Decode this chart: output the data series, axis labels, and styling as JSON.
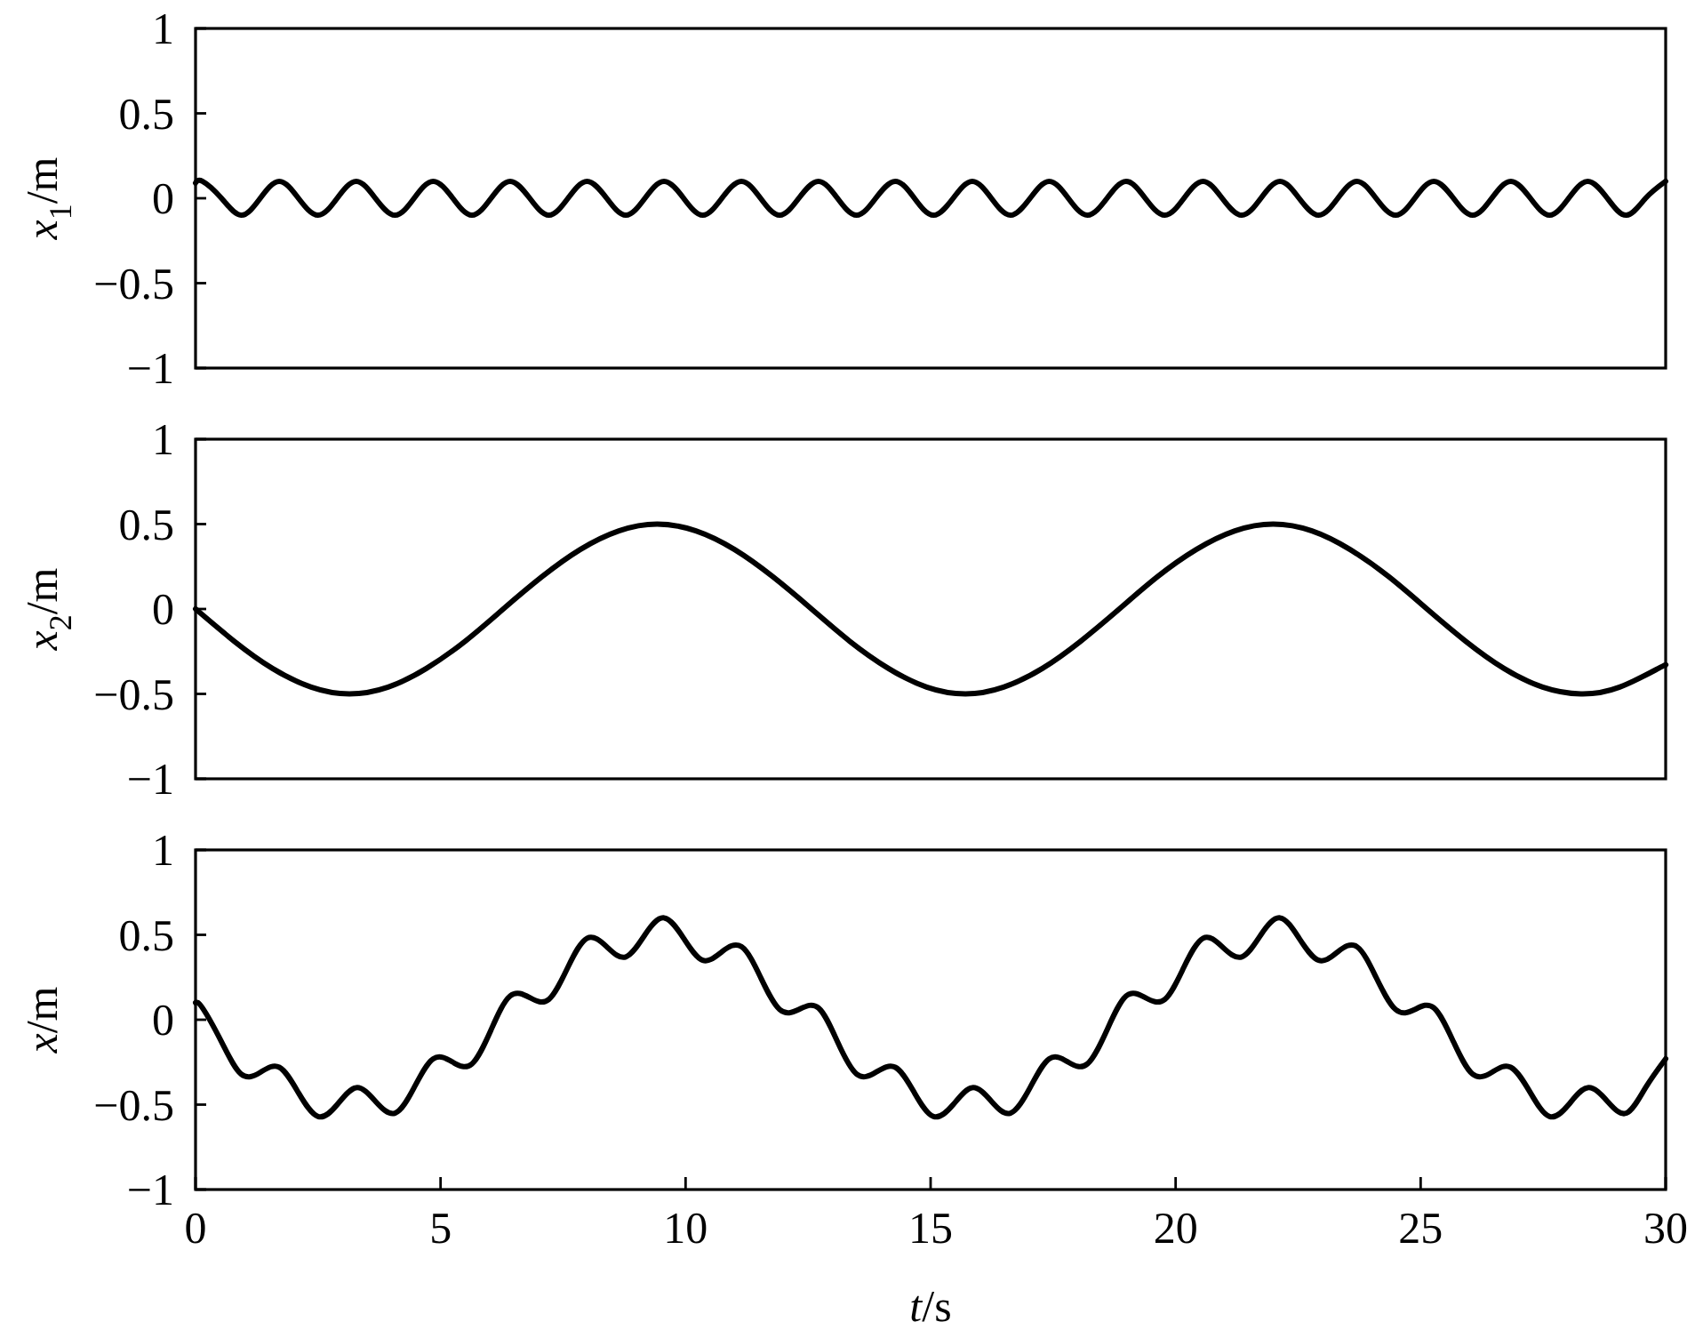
{
  "chart_data": [
    {
      "type": "line",
      "ylabel": "x$_{1}$/m",
      "xlim": [
        0,
        30
      ],
      "ylim": [
        -1,
        1
      ],
      "yticks": [
        -1,
        -0.5,
        0,
        0.5,
        1
      ],
      "tick_labels": "y",
      "color": "#000000",
      "x": [
        0,
        0.14,
        0.53,
        0.93,
        1.32,
        1.71,
        2.1,
        2.5,
        2.89,
        3.28,
        3.67,
        4.07,
        4.46,
        4.85,
        5.25,
        5.64,
        6.03,
        6.42,
        6.82,
        7.21,
        7.6,
        7.99,
        8.39,
        8.78,
        9.17,
        9.56,
        9.96,
        10.35,
        10.74,
        11.14,
        11.53,
        11.92,
        12.31,
        12.71,
        13.1,
        13.49,
        13.88,
        14.28,
        14.67,
        15.06,
        15.46,
        15.85,
        16.24,
        16.63,
        17.03,
        17.42,
        17.81,
        18.2,
        18.6,
        18.99,
        19.38,
        19.78,
        20.17,
        20.56,
        20.95,
        21.35,
        21.74,
        22.13,
        22.52,
        22.92,
        23.31,
        23.7,
        24.09,
        24.49,
        24.88,
        25.27,
        25.67,
        26.06,
        26.45,
        26.84,
        27.24,
        27.63,
        28.02,
        28.41,
        28.81,
        29.2,
        29.59,
        30
      ],
      "values": [
        0.09,
        0.1,
        0,
        -0.1,
        0,
        0.1,
        0,
        -0.1,
        0,
        0.1,
        0,
        -0.1,
        0,
        0.1,
        0,
        -0.1,
        0,
        0.1,
        0,
        -0.1,
        0,
        0.1,
        0,
        -0.1,
        0,
        0.1,
        0,
        -0.1,
        0,
        0.1,
        0,
        -0.1,
        0,
        0.1,
        0,
        -0.1,
        0,
        0.1,
        0,
        -0.1,
        0,
        0.1,
        0,
        -0.1,
        0,
        0.1,
        0,
        -0.1,
        0,
        0.1,
        0,
        -0.1,
        0,
        0.1,
        0,
        -0.1,
        0,
        0.1,
        0,
        -0.1,
        0,
        0.1,
        0,
        -0.1,
        0,
        0.1,
        0,
        -0.1,
        0,
        0.1,
        0,
        -0.1,
        0,
        0.1,
        0,
        -0.1,
        0,
        0.1
      ]
    },
    {
      "type": "line",
      "ylabel": "x$_{2}$/m",
      "xlim": [
        0,
        30
      ],
      "ylim": [
        -1,
        1
      ],
      "yticks": [
        -1,
        -0.5,
        0,
        0.5,
        1
      ],
      "tick_labels": "y",
      "color": "#000000",
      "x": [
        0,
        0.79,
        1.57,
        2.36,
        3.14,
        3.93,
        4.71,
        5.5,
        6.28,
        7.07,
        7.85,
        8.64,
        9.42,
        10.21,
        11,
        11.78,
        12.57,
        13.35,
        14.14,
        14.92,
        15.71,
        16.49,
        17.28,
        18.06,
        18.85,
        19.63,
        20.42,
        21.21,
        21.99,
        22.78,
        23.56,
        24.35,
        25.13,
        25.92,
        26.7,
        27.49,
        28.27,
        29.06,
        29.85,
        30
      ],
      "values": [
        0,
        -0.19,
        -0.35,
        -0.46,
        -0.5,
        -0.46,
        -0.35,
        -0.19,
        0,
        0.19,
        0.35,
        0.46,
        0.5,
        0.46,
        0.35,
        0.19,
        0,
        -0.19,
        -0.35,
        -0.46,
        -0.5,
        -0.46,
        -0.35,
        -0.19,
        0,
        0.19,
        0.35,
        0.46,
        0.5,
        0.46,
        0.35,
        0.19,
        0,
        -0.19,
        -0.35,
        -0.46,
        -0.5,
        -0.46,
        -0.35,
        -0.33
      ]
    },
    {
      "type": "line",
      "ylabel": "x/m",
      "xlabel": "t/s",
      "xlim": [
        0,
        30
      ],
      "ylim": [
        -1,
        1
      ],
      "xticks": [
        0,
        5,
        10,
        15,
        20,
        25,
        30
      ],
      "yticks": [
        -1,
        -0.5,
        0,
        0.5,
        1
      ],
      "color": "#000000",
      "x": [
        0,
        0.14,
        0.53,
        0.93,
        1.32,
        1.71,
        2.1,
        2.5,
        2.89,
        3.28,
        3.67,
        4.07,
        4.46,
        4.85,
        5.25,
        5.64,
        6.03,
        6.42,
        6.82,
        7.21,
        7.6,
        7.99,
        8.39,
        8.78,
        9.17,
        9.56,
        9.96,
        10.35,
        10.74,
        11.14,
        11.53,
        11.92,
        12.31,
        12.71,
        13.1,
        13.49,
        13.88,
        14.28,
        14.67,
        15.06,
        15.46,
        15.85,
        16.24,
        16.63,
        17.03,
        17.42,
        17.81,
        18.2,
        18.6,
        18.99,
        19.38,
        19.78,
        20.17,
        20.56,
        20.95,
        21.35,
        21.74,
        22.13,
        22.52,
        22.92,
        23.31,
        23.7,
        24.09,
        24.49,
        24.88,
        25.27,
        25.67,
        26.06,
        26.45,
        26.84,
        27.24,
        27.63,
        28.02,
        28.41,
        28.81,
        29.2,
        29.59,
        30
      ],
      "values": [
        0.1,
        0.07,
        -0.13,
        -0.32,
        -0.31,
        -0.28,
        -0.43,
        -0.57,
        -0.5,
        -0.4,
        -0.48,
        -0.55,
        -0.4,
        -0.23,
        -0.25,
        -0.26,
        -0.06,
        0.14,
        0.13,
        0.12,
        0.31,
        0.48,
        0.43,
        0.37,
        0.5,
        0.6,
        0.48,
        0.35,
        0.4,
        0.43,
        0.25,
        0.06,
        0.06,
        0.07,
        -0.13,
        -0.32,
        -0.31,
        -0.28,
        -0.43,
        -0.57,
        -0.5,
        -0.4,
        -0.48,
        -0.55,
        -0.4,
        -0.23,
        -0.25,
        -0.26,
        -0.06,
        0.14,
        0.13,
        0.12,
        0.31,
        0.48,
        0.43,
        0.37,
        0.5,
        0.6,
        0.48,
        0.35,
        0.4,
        0.43,
        0.25,
        0.06,
        0.06,
        0.07,
        -0.13,
        -0.32,
        -0.31,
        -0.28,
        -0.43,
        -0.57,
        -0.5,
        -0.4,
        -0.48,
        -0.55,
        -0.4,
        -0.23
      ]
    }
  ]
}
